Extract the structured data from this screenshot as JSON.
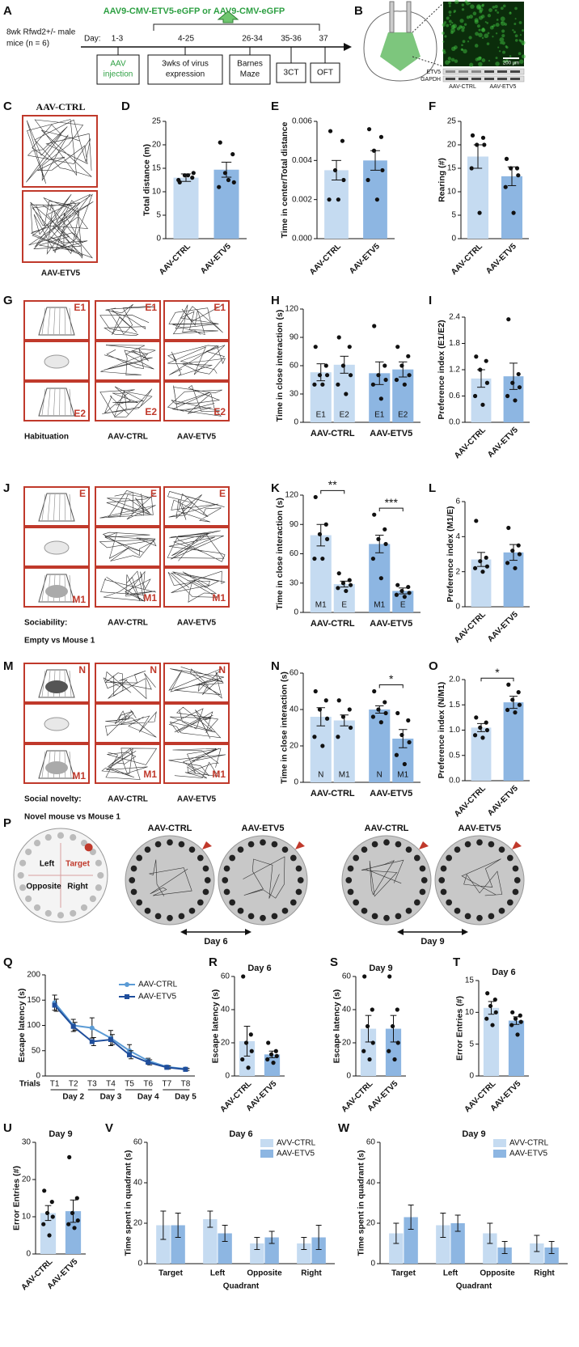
{
  "panels": {
    "A": {
      "label": "A",
      "header": "AAV9-CMV-ETV5-eGFP or AAV9-CMV-eGFP",
      "subjects": [
        "8wk Rfwd2+/- male",
        "mice (n = 6)"
      ],
      "day_prefix": "Day:",
      "days": [
        "1-3",
        "4-25",
        "26-34",
        "35-36",
        "37"
      ],
      "steps": [
        [
          "AAV",
          "injection"
        ],
        [
          "3wks of virus",
          "expression"
        ],
        [
          "Barnes",
          "Maze"
        ],
        [
          "3CT"
        ],
        [
          "OFT"
        ]
      ]
    },
    "B": {
      "label": "B",
      "scale": "200 µm",
      "blot_rows": [
        "ETV5",
        "GAPDH"
      ],
      "blot_groups": [
        "AAV-CTRL",
        "AAV-ETV5"
      ]
    },
    "C": {
      "label": "C",
      "columns": [
        "AAV-CTRL",
        "AAV-ETV5"
      ]
    },
    "D": {
      "label": "D",
      "type": "bar",
      "ylabel": "Total distance (m)",
      "categories": [
        "AAV-CTRL",
        "AAV-ETV5"
      ],
      "values": [
        13,
        14.7
      ],
      "errors": [
        0.8,
        1.6
      ],
      "points": [
        [
          12,
          13,
          13.5,
          14,
          12.5,
          13.5
        ],
        [
          20.5,
          18,
          14,
          12,
          11,
          12.5
        ]
      ],
      "colors": [
        "#c5dbf1",
        "#8db6e2"
      ],
      "ylim": [
        0,
        25
      ],
      "yticks": [
        0,
        5,
        10,
        15,
        20,
        25
      ]
    },
    "E": {
      "label": "E",
      "type": "bar",
      "ylabel": "Time in center/Total distance",
      "categories": [
        "AAV-CTRL",
        "AAV-ETV5"
      ],
      "values": [
        0.0035,
        0.004
      ],
      "errors": [
        0.0005,
        0.0005
      ],
      "points": [
        [
          0.0055,
          0.005,
          0.0035,
          0.003,
          0.002,
          0.002
        ],
        [
          0.0056,
          0.0052,
          0.0045,
          0.0035,
          0.003,
          0.002
        ]
      ],
      "colors": [
        "#c5dbf1",
        "#8db6e2"
      ],
      "ylim": [
        0,
        0.006
      ],
      "yticks": [
        {
          "value": 0,
          "label": "0.000"
        },
        {
          "value": 0.002,
          "label": "0.002"
        },
        {
          "value": 0.004,
          "label": "0.004"
        },
        {
          "value": 0.006,
          "label": "0.006"
        }
      ]
    },
    "F": {
      "label": "F",
      "type": "bar",
      "ylabel": "Rearing (#)",
      "categories": [
        "AAV-CTRL",
        "AAV-ETV5"
      ],
      "values": [
        17.5,
        13.3
      ],
      "errors": [
        2.5,
        2
      ],
      "points": [
        [
          22,
          21.5,
          20,
          20,
          15,
          5.5
        ],
        [
          17,
          15,
          15,
          13.5,
          11,
          5.5
        ]
      ],
      "colors": [
        "#c5dbf1",
        "#8db6e2"
      ],
      "ylim": [
        0,
        25
      ],
      "yticks": [
        0,
        5,
        10,
        15,
        20,
        25
      ]
    },
    "G": {
      "label": "G",
      "chamber_labels": [
        "E1",
        "E2"
      ],
      "caption": [
        "Habituation"
      ],
      "columns": [
        "AAV-CTRL",
        "AAV-ETV5"
      ]
    },
    "H": {
      "label": "H",
      "type": "grouped",
      "ylabel": "Time in close interaction (s)",
      "groups": [
        "AAV-CTRL",
        "AAV-ETV5"
      ],
      "bar_labels": [
        "E1",
        "E2",
        "E1",
        "E2"
      ],
      "values": [
        53,
        61,
        52,
        56
      ],
      "errors": [
        9,
        9,
        12,
        8
      ],
      "points": [
        [
          80,
          60,
          50,
          50,
          40,
          40
        ],
        [
          90,
          80,
          60,
          50,
          40,
          30
        ],
        [
          102,
          60,
          50,
          45,
          40,
          25
        ],
        [
          80,
          70,
          60,
          50,
          45,
          40
        ]
      ],
      "colors": [
        "#c5dbf1",
        "#c5dbf1",
        "#8db6e2",
        "#8db6e2"
      ],
      "ylim": [
        0,
        120
      ],
      "yticks": [
        0,
        30,
        60,
        90,
        120
      ]
    },
    "I": {
      "label": "I",
      "type": "bar",
      "ylabel": "Preference index (E1/E2)",
      "categories": [
        "AAV-CTRL",
        "AAV-ETV5"
      ],
      "values": [
        1.0,
        1.05
      ],
      "errors": [
        0.2,
        0.3
      ],
      "points": [
        [
          1.5,
          1.4,
          1.2,
          0.9,
          0.6,
          0.4
        ],
        [
          2.35,
          1.1,
          0.9,
          0.8,
          0.6,
          0.5
        ]
      ],
      "colors": [
        "#c5dbf1",
        "#8db6e2"
      ],
      "ylim": [
        0,
        2.4
      ],
      "yticks": [
        {
          "value": 0,
          "label": "0.0"
        },
        0.6,
        1.2,
        1.8,
        2.4
      ]
    },
    "J": {
      "label": "J",
      "chamber_labels": [
        "E",
        "M1"
      ],
      "caption": [
        "Sociability:",
        "Empty vs Mouse 1"
      ],
      "columns": [
        "AAV-CTRL",
        "AAV-ETV5"
      ]
    },
    "K": {
      "label": "K",
      "type": "grouped",
      "ylabel": "Time in close interaction (s)",
      "groups": [
        "AAV-CTRL",
        "AAV-ETV5"
      ],
      "bar_labels": [
        "M1",
        "E",
        "M1",
        "E"
      ],
      "values": [
        79,
        29,
        70,
        22
      ],
      "errors": [
        11,
        3,
        9,
        3
      ],
      "points": [
        [
          118,
          90,
          80,
          75,
          55,
          55
        ],
        [
          40,
          33,
          30,
          28,
          25,
          22
        ],
        [
          100,
          85,
          75,
          70,
          55,
          35
        ],
        [
          28,
          26,
          22,
          20,
          18,
          16
        ]
      ],
      "significance": [
        "**",
        "***"
      ],
      "colors": [
        "#c5dbf1",
        "#c5dbf1",
        "#8db6e2",
        "#8db6e2"
      ],
      "ylim": [
        0,
        120
      ],
      "yticks": [
        0,
        30,
        60,
        90,
        120
      ]
    },
    "L": {
      "label": "L",
      "type": "bar",
      "ylabel": "Preference index (M1/E)",
      "categories": [
        "AAV-CTRL",
        "AAV-ETV5"
      ],
      "values": [
        2.7,
        3.1
      ],
      "errors": [
        0.4,
        0.45
      ],
      "points": [
        [
          4.9,
          2.8,
          2.6,
          2.3,
          2.2,
          2.0
        ],
        [
          4.5,
          3.5,
          3.2,
          3.0,
          2.5,
          2.2
        ]
      ],
      "colors": [
        "#c5dbf1",
        "#8db6e2"
      ],
      "ylim": [
        0,
        6
      ],
      "yticks": [
        0,
        2,
        4,
        6
      ]
    },
    "M": {
      "label": "M",
      "chamber_labels": [
        "N",
        "M1"
      ],
      "caption": [
        "Social novelty:",
        "Novel mouse vs Mouse 1"
      ],
      "columns": [
        "AAV-CTRL",
        "AAV-ETV5"
      ]
    },
    "N": {
      "label": "N",
      "type": "grouped",
      "ylabel": "Time in close interaction (s)",
      "groups": [
        "AAV-CTRL",
        "AAV-ETV5"
      ],
      "bar_labels": [
        "N",
        "M1",
        "N",
        "M1"
      ],
      "values": [
        36,
        34,
        40,
        24
      ],
      "errors": [
        5,
        3,
        2,
        5
      ],
      "points": [
        [
          50,
          45,
          40,
          35,
          25,
          20
        ],
        [
          45,
          40,
          36,
          30,
          25
        ],
        [
          50,
          44,
          40,
          38,
          36,
          33
        ],
        [
          38,
          34,
          26,
          22,
          15,
          10
        ]
      ],
      "significance": [
        null,
        "*"
      ],
      "colors": [
        "#c5dbf1",
        "#c5dbf1",
        "#8db6e2",
        "#8db6e2"
      ],
      "ylim": [
        0,
        60
      ],
      "yticks": [
        0,
        20,
        40,
        60
      ]
    },
    "O": {
      "label": "O",
      "type": "bar",
      "ylabel": "Preference index (N/M1)",
      "categories": [
        "AAV-CTRL",
        "AAV-ETV5"
      ],
      "values": [
        1.05,
        1.55
      ],
      "errors": [
        0.08,
        0.12
      ],
      "points": [
        [
          1.25,
          1.15,
          1.05,
          1.0,
          0.9,
          0.85
        ],
        [
          1.9,
          1.75,
          1.6,
          1.5,
          1.4,
          1.35
        ]
      ],
      "significance": "*",
      "colors": [
        "#c5dbf1",
        "#8db6e2"
      ],
      "ylim": [
        0,
        2
      ],
      "yticks": [
        {
          "value": 0,
          "label": "0.0"
        },
        0.5,
        {
          "value": 1,
          "label": "1.0"
        },
        1.5,
        {
          "value": 2,
          "label": "2.0"
        }
      ]
    },
    "P": {
      "label": "P",
      "quadrants": [
        "Left",
        "Target",
        "Opposite",
        "Right"
      ],
      "columns": [
        "AAV-CTRL",
        "AAV-ETV5",
        "AAV-CTRL",
        "AAV-ETV5"
      ],
      "days": [
        "Day 6",
        "Day 9"
      ]
    },
    "Q": {
      "label": "Q",
      "type": "line",
      "ylabel": "Escape latency (s)",
      "x_label": "Trials",
      "categories": [
        "T1",
        "T2",
        "T3",
        "T4",
        "T5",
        "T6",
        "T7",
        "T8"
      ],
      "day_labels": [
        "Day 2",
        "Day 3",
        "Day 4",
        "Day 5"
      ],
      "series": [
        {
          "name": "AAV-CTRL",
          "color": "#5b9bd5",
          "values": [
            145,
            100,
            95,
            75,
            50,
            30,
            18,
            14
          ],
          "errors": [
            15,
            12,
            20,
            15,
            12,
            5,
            3,
            3
          ]
        },
        {
          "name": "AAV-ETV5",
          "color": "#1f4e9c",
          "values": [
            140,
            98,
            68,
            72,
            42,
            27,
            17,
            13
          ],
          "errors": [
            12,
            8,
            8,
            10,
            8,
            5,
            3,
            2
          ]
        }
      ],
      "ylim": [
        0,
        200
      ],
      "yticks": [
        0,
        50,
        100,
        150,
        200
      ]
    },
    "R": {
      "label": "R",
      "type": "bar",
      "title": "Day 6",
      "ylabel": "Escape latency (s)",
      "categories": [
        "AAV-CTRL",
        "AAV-ETV5"
      ],
      "values": [
        21,
        13
      ],
      "errors": [
        9,
        2
      ],
      "points": [
        [
          60,
          25,
          20,
          15,
          10,
          5
        ],
        [
          20,
          15,
          13,
          12,
          10,
          8
        ]
      ],
      "colors": [
        "#c5dbf1",
        "#8db6e2"
      ],
      "ylim": [
        0,
        60
      ],
      "yticks": [
        0,
        20,
        40,
        60
      ]
    },
    "S": {
      "label": "S",
      "type": "bar",
      "title": "Day 9",
      "ylabel": "Escape latency (s)",
      "categories": [
        "AAV-CTRL",
        "AAV-ETV5"
      ],
      "values": [
        28.5,
        28.5
      ],
      "errors": [
        8,
        8
      ],
      "points": [
        [
          60,
          40,
          30,
          20,
          15,
          10
        ],
        [
          60,
          40,
          30,
          20,
          15,
          10
        ]
      ],
      "colors": [
        "#c5dbf1",
        "#8db6e2"
      ],
      "ylim": [
        0,
        60
      ],
      "yticks": [
        0,
        20,
        40,
        60
      ]
    },
    "T": {
      "label": "T",
      "type": "bar",
      "title": "Day 6",
      "ylabel": "Error Entries (#)",
      "categories": [
        "AAV-CTRL",
        "AAV-ETV5"
      ],
      "values": [
        10.7,
        8.7
      ],
      "errors": [
        1,
        0.6
      ],
      "points": [
        [
          13,
          12,
          11,
          10,
          9,
          8
        ],
        [
          10,
          9.5,
          9,
          8.5,
          8,
          6.5
        ]
      ],
      "colors": [
        "#c5dbf1",
        "#8db6e2"
      ],
      "ylim": [
        0,
        15
      ],
      "yticks": [
        0,
        5,
        10,
        15
      ]
    },
    "U": {
      "label": "U",
      "type": "bar",
      "title": "Day 9",
      "ylabel": "Error Entries (#)",
      "categories": [
        "AAV-CTRL",
        "AAV-ETV5"
      ],
      "values": [
        11,
        11.5
      ],
      "errors": [
        2,
        3
      ],
      "points": [
        [
          17,
          14,
          11,
          10,
          8,
          5
        ],
        [
          26,
          15,
          11,
          9,
          8,
          7
        ]
      ],
      "colors": [
        "#c5dbf1",
        "#8db6e2"
      ],
      "ylim": [
        0,
        30
      ],
      "yticks": [
        0,
        10,
        20,
        30
      ]
    },
    "V": {
      "label": "V",
      "type": "series_bar",
      "title": "Day 6",
      "ylabel": "Time spent in quadrant (s)",
      "x_label": "Quadrant",
      "categories": [
        "Target",
        "Left",
        "Opposite",
        "Right"
      ],
      "series": [
        {
          "name": "AVV-CTRL",
          "color": "#c5dbf1",
          "values": [
            19,
            22,
            10,
            10
          ],
          "errors": [
            7,
            4,
            3,
            3
          ]
        },
        {
          "name": "AAV-ETV5",
          "color": "#8db6e2",
          "values": [
            19,
            15,
            13,
            13
          ],
          "errors": [
            6,
            4,
            3,
            6
          ]
        }
      ],
      "ylim": [
        0,
        60
      ],
      "yticks": [
        0,
        20,
        40,
        60
      ]
    },
    "W": {
      "label": "W",
      "type": "series_bar",
      "title": "Day 9",
      "ylabel": "Time spent in quadrant (s)",
      "x_label": "Quadrant",
      "categories": [
        "Target",
        "Left",
        "Opposite",
        "Right"
      ],
      "series": [
        {
          "name": "AVV-CTRL",
          "color": "#c5dbf1",
          "values": [
            15,
            19,
            15,
            10
          ],
          "errors": [
            5,
            6,
            5,
            4
          ]
        },
        {
          "name": "AAV-ETV5",
          "color": "#8db6e2",
          "values": [
            23,
            20,
            8,
            8
          ],
          "errors": [
            6,
            4,
            3,
            3
          ]
        }
      ],
      "ylim": [
        0,
        60
      ],
      "yticks": [
        0,
        20,
        40,
        60
      ]
    }
  }
}
